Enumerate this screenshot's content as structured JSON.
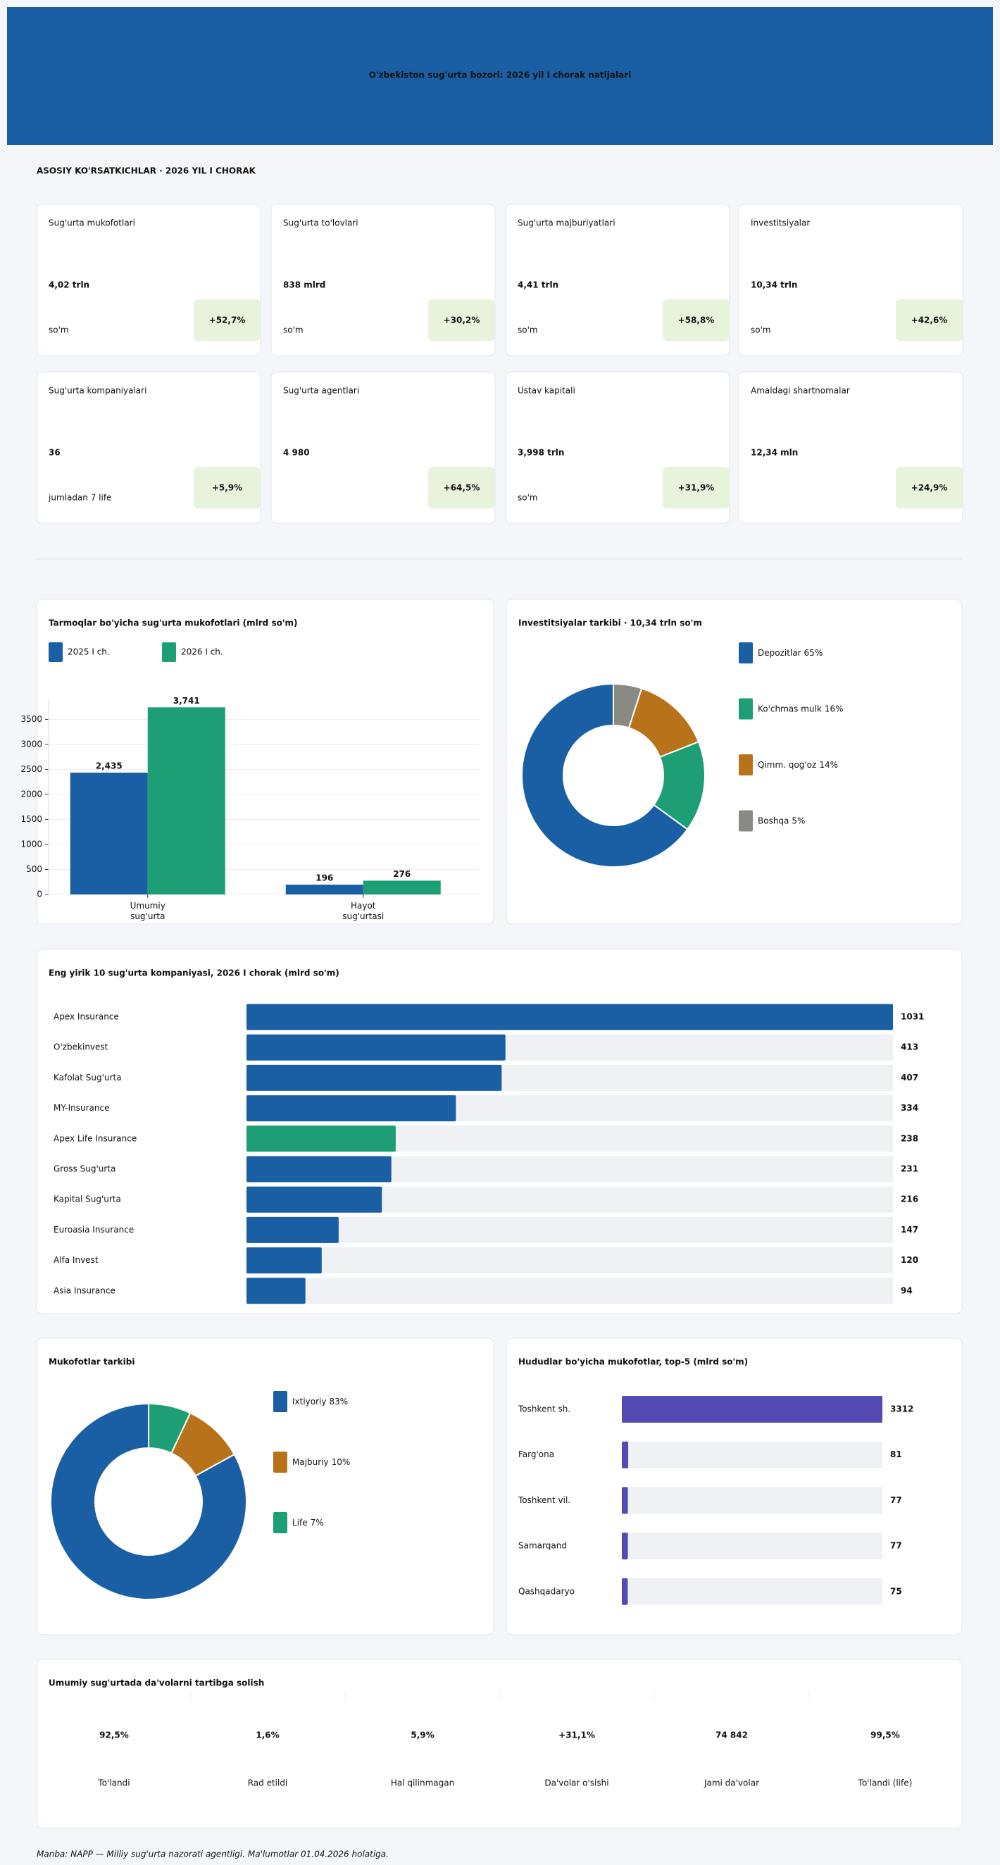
{
  "header": {
    "title": "O'zbekiston sug'urta bozori: 2026 yil I chorak natijalari"
  },
  "kpi_section": {
    "title": "ASOSIY KO'RSATKICHLAR · 2026 YIL I CHORAK",
    "cards": [
      {
        "label": "Sug'urta mukofotlari",
        "value": "4,02 trln",
        "unit": "so'm",
        "change": "+52,7%"
      },
      {
        "label": "Sug'urta to'lovlari",
        "value": "838 mlrd",
        "unit": "so'm",
        "change": "+30,2%"
      },
      {
        "label": "Sug'urta majburiyatlari",
        "value": "4,41 trln",
        "unit": "so'm",
        "change": "+58,8%"
      },
      {
        "label": "Investitsiyalar",
        "value": "10,34 trln",
        "unit": "so'm",
        "change": "+42,6%"
      },
      {
        "label": "Sug'urta kompaniyalari",
        "value": "36",
        "unit": "jumladan 7 life",
        "change": "+5,9%"
      },
      {
        "label": "Sug'urta agentlari",
        "value": "4 980",
        "change": "+64,5%"
      },
      {
        "label": "Ustav kapitali",
        "value": "3,998 trln",
        "unit": "so'm",
        "change": "+31,9%"
      },
      {
        "label": "Amaldagi shartnomalar",
        "value": "12,34 mln",
        "change": "+24,9%"
      }
    ]
  },
  "chart_data": [
    {
      "type": "bar",
      "title": "Tarmoqlar bo'yicha sug'urta mukofotlari (mlrd so'm)",
      "categories": [
        "Umumiy sug'urta",
        "Hayot sug'urtasi"
      ],
      "series": [
        {
          "name": "2025 I ch.",
          "color": "#1a5fa3",
          "values": [
            2435,
            196
          ],
          "value_labels": [
            "2,435",
            "196"
          ]
        },
        {
          "name": "2026 I ch.",
          "color": "#1e9e75",
          "values": [
            3741,
            276
          ],
          "value_labels": [
            "3,741",
            "276"
          ]
        }
      ],
      "ylim": [
        0,
        3900
      ],
      "yticks": [
        0,
        500,
        1000,
        1500,
        2000,
        2500,
        3000,
        3500
      ],
      "grid": true
    },
    {
      "type": "donut",
      "title": "Investitsiyalar tarkibi · 10,34 trln so'm",
      "categories": [
        "Depozitlar",
        "Ko'chmas mulk",
        "Qimm. qog'oz",
        "Boshqa"
      ],
      "values": [
        65,
        16,
        14,
        5
      ],
      "value_labels": [
        "65%",
        "16%",
        "14%",
        "5%"
      ],
      "colors": [
        "#1a5fa3",
        "#1e9e75",
        "#b8731a",
        "#8a8a85"
      ]
    },
    {
      "type": "hbar",
      "title": "Eng yirik 10 sug'urta kompaniyasi, 2026 I chorak (mlrd so'm)",
      "categories": [
        "Apex Insurance",
        "O'zbekinvest",
        "Kafolat Sug'urta",
        "MY-Insurance",
        "Apex Life Insurance",
        "Gross Sug'urta",
        "Kapital Sug'urta",
        "Euroasia Insurance",
        "Alfa Invest",
        "Asia Insurance"
      ],
      "values": [
        1031,
        413,
        407,
        334,
        238,
        231,
        216,
        147,
        120,
        94
      ],
      "colors": [
        "#1a5fa3",
        "#1a5fa3",
        "#1a5fa3",
        "#1a5fa3",
        "#1e9e75",
        "#1a5fa3",
        "#1a5fa3",
        "#1a5fa3",
        "#1a5fa3",
        "#1a5fa3"
      ],
      "xlim": [
        0,
        1031
      ]
    },
    {
      "type": "donut",
      "title": "Mukofotlar tarkibi",
      "categories": [
        "Ixtiyoriy",
        "Majburiy",
        "Life"
      ],
      "values": [
        83,
        10,
        7
      ],
      "value_labels": [
        "83%",
        "10%",
        "7%"
      ],
      "colors": [
        "#1a5fa3",
        "#b8731a",
        "#1e9e75"
      ]
    },
    {
      "type": "hbar",
      "title": "Hududlar bo'yicha mukofotlar, top-5 (mlrd so'm)",
      "categories": [
        "Toshkent sh.",
        "Farg'ona",
        "Toshkent vil.",
        "Samarqand",
        "Qashqadaryo"
      ],
      "values": [
        3312,
        81,
        77,
        77,
        75
      ],
      "color": "#534bb3",
      "xlim": [
        0,
        3312
      ]
    }
  ],
  "claims": {
    "title": "Umumiy sug'urtada da'volarni tartibga solish",
    "items": [
      {
        "value": "92,5%",
        "label": "To'landi",
        "color": "#3a7a1e"
      },
      {
        "value": "1,6%",
        "label": "Rad etildi",
        "color": "#a0282f"
      },
      {
        "value": "5,9%",
        "label": "Hal qilinmagan",
        "color": "#111111"
      },
      {
        "value": "+31,1%",
        "label": "Da'volar o'sishi",
        "color": "#3a7a1e"
      },
      {
        "value": "74 842",
        "label": "Jami da'volar",
        "color": "#1a5fa3"
      },
      {
        "value": "99,5%",
        "label": "To'landi (life)",
        "color": "#1a5fa3"
      }
    ]
  },
  "footer": {
    "source": "Manba: NAPP — Milliy sug'urta nazorati agentligi. Ma'lumotlar 01.04.2026 holatiga."
  }
}
